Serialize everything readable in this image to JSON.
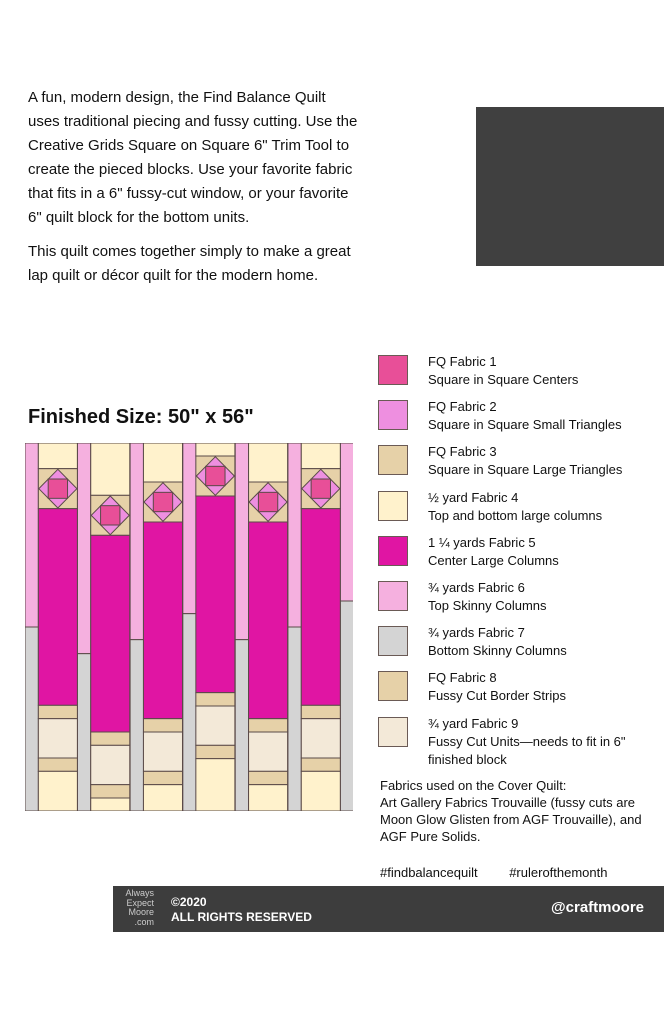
{
  "intro": {
    "p1": "A fun, modern design, the Find Balance Quilt uses traditional piecing and fussy cutting. Use the Creative Grids Square on Square 6\" Trim Tool to create the pieced blocks. Use your favorite fabric that fits in a 6\" fussy-cut window, or your favorite 6\" quilt block for the bottom units.",
    "p2": "This quilt comes together simply to make a great lap quilt or décor quilt for the modern home."
  },
  "finished_size": "Finished Size: 50\" x 56\"",
  "legend": [
    {
      "line1": "FQ Fabric  1",
      "line2": "Square in Square Centers",
      "color": "#e84f98"
    },
    {
      "line1": "FQ Fabric  2",
      "line2": "Square in Square Small Triangles",
      "color": "#ee8fe0"
    },
    {
      "line1": "FQ Fabric  3",
      "line2": "Square in Square Large Triangles",
      "color": "#e6d1a8"
    },
    {
      "line1": "½ yard Fabric  4",
      "line2": "Top and bottom large columns",
      "color": "#fff2cc"
    },
    {
      "line1": "1 ¼ yards Fabric  5",
      "line2": "Center Large Columns",
      "color": "#e015a3"
    },
    {
      "line1": "¾ yards Fabric  6",
      "line2": "Top Skinny Columns",
      "color": "#f5b0df"
    },
    {
      "line1": "¾ yards Fabric  7",
      "line2": "Bottom Skinny Columns",
      "color": "#d4d4d4"
    },
    {
      "line1": "FQ Fabric  8",
      "line2": "Fussy Cut Border Strips",
      "color": "#e6d1a8"
    },
    {
      "line1": "¾ yard Fabric 9",
      "line2": "Fussy Cut Units—needs to fit in 6\" finished block",
      "color": "#f3e9d8"
    }
  ],
  "notes": {
    "heading": "Fabrics used on the Cover Quilt:",
    "body": "Art Gallery Fabrics Trouvaille (fussy cuts are Moon Glow Glisten from AGF Trouvaille), and AGF Pure Solids."
  },
  "tags": [
    "#findbalancequilt",
    "#rulerofthemonth"
  ],
  "footer": {
    "logo": "Always Expect Moore .com",
    "copyright": "©2020",
    "rights": "ALL RIGHTS RESERVED",
    "handle": "@craftmoore"
  }
}
